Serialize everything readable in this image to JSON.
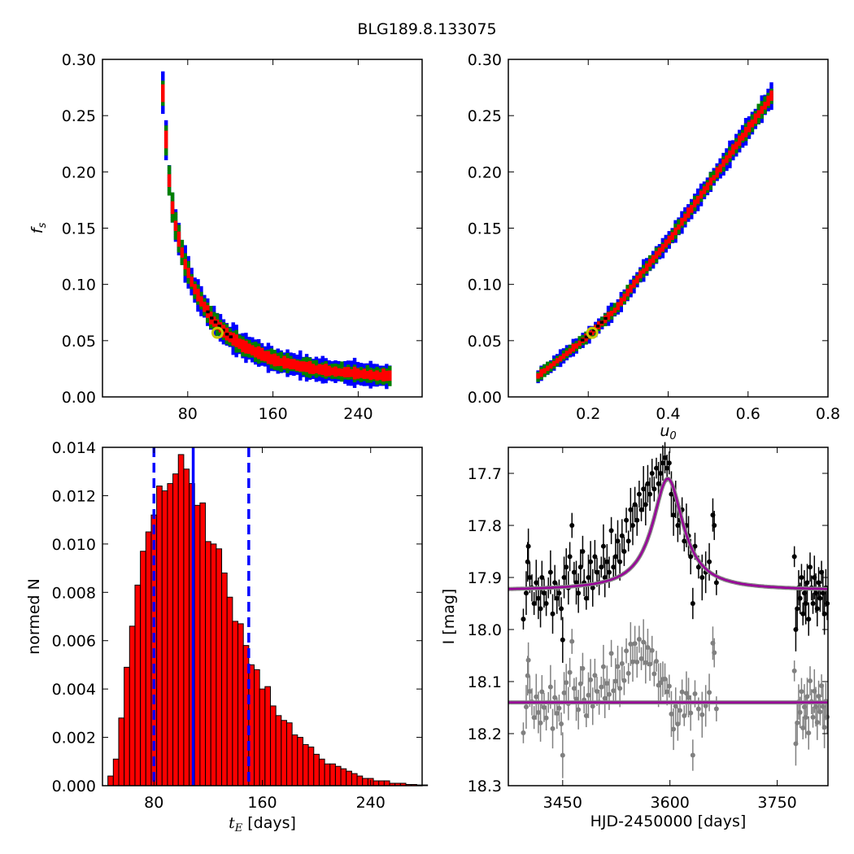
{
  "title": "BLG189.8.133075",
  "chart_data": [
    {
      "panel": "top-left",
      "type": "heatmap",
      "description_levels": [
        "best",
        "1-sigma",
        "2-sigma",
        "3-sigma"
      ],
      "colors": {
        "best": "#000000",
        "1-sigma": "#ff0000",
        "2-sigma": "#008000",
        "3-sigma": "#0000ff",
        "marker": "#c8c800"
      },
      "xlabel": "",
      "ylabel": "f_s",
      "xlim": [
        0,
        300
      ],
      "ylim": [
        0.0,
        0.3
      ],
      "xticks": [
        "80",
        "160",
        "240"
      ],
      "yticks": [
        "0.00",
        "0.05",
        "0.10",
        "0.15",
        "0.20",
        "0.25",
        "0.30"
      ],
      "best_fit": {
        "x": 108,
        "y": 0.057
      },
      "ridge": [
        {
          "x": 55,
          "y": 0.27
        },
        {
          "x": 60,
          "y": 0.2
        },
        {
          "x": 65,
          "y": 0.16
        },
        {
          "x": 75,
          "y": 0.12
        },
        {
          "x": 85,
          "y": 0.095
        },
        {
          "x": 100,
          "y": 0.07
        },
        {
          "x": 115,
          "y": 0.055
        },
        {
          "x": 130,
          "y": 0.045
        },
        {
          "x": 160,
          "y": 0.032
        },
        {
          "x": 200,
          "y": 0.024
        },
        {
          "x": 240,
          "y": 0.02
        },
        {
          "x": 270,
          "y": 0.018
        }
      ]
    },
    {
      "panel": "top-right",
      "type": "heatmap",
      "xlabel": "u_0",
      "ylabel": "",
      "xlim": [
        0.0,
        0.8
      ],
      "ylim": [
        0.0,
        0.3
      ],
      "xticks": [
        "0.2",
        "0.4",
        "0.6",
        "0.8"
      ],
      "yticks": [
        "0.00",
        "0.05",
        "0.10",
        "0.15",
        "0.20",
        "0.25",
        "0.30"
      ],
      "best_fit": {
        "x": 0.21,
        "y": 0.057
      },
      "ridge": [
        {
          "x": 0.07,
          "y": 0.018
        },
        {
          "x": 0.13,
          "y": 0.035
        },
        {
          "x": 0.2,
          "y": 0.055
        },
        {
          "x": 0.27,
          "y": 0.08
        },
        {
          "x": 0.33,
          "y": 0.11
        },
        {
          "x": 0.4,
          "y": 0.14
        },
        {
          "x": 0.46,
          "y": 0.17
        },
        {
          "x": 0.52,
          "y": 0.2
        },
        {
          "x": 0.58,
          "y": 0.23
        },
        {
          "x": 0.63,
          "y": 0.255
        },
        {
          "x": 0.66,
          "y": 0.27
        }
      ]
    },
    {
      "panel": "bottom-left",
      "type": "bar",
      "xlabel": "t_E [days]",
      "ylabel": "normed N",
      "xlim": [
        42,
        278
      ],
      "ylim": [
        0.0,
        0.014
      ],
      "xticks": [
        "80",
        "160",
        "240"
      ],
      "yticks": [
        "0.000",
        "0.002",
        "0.004",
        "0.006",
        "0.008",
        "0.010",
        "0.012",
        "0.014"
      ],
      "bar_color": "#ff0000",
      "bin_width": 4,
      "bins_start": 46,
      "values": [
        0.0004,
        0.0011,
        0.0028,
        0.0049,
        0.0066,
        0.0083,
        0.0097,
        0.0105,
        0.0112,
        0.0124,
        0.0122,
        0.0125,
        0.0129,
        0.0137,
        0.0131,
        0.0125,
        0.0116,
        0.0117,
        0.0101,
        0.01,
        0.0098,
        0.0088,
        0.0078,
        0.0068,
        0.0067,
        0.0058,
        0.005,
        0.0048,
        0.004,
        0.0041,
        0.0033,
        0.0029,
        0.0027,
        0.0026,
        0.0021,
        0.002,
        0.0017,
        0.0016,
        0.0013,
        0.0011,
        0.0009,
        0.0009,
        0.0008,
        0.0007,
        0.0006,
        0.0005,
        0.0004,
        0.0003,
        0.0003,
        0.0002,
        0.0002,
        0.0002,
        0.0001,
        0.0001,
        0.0001,
        5e-05,
        5e-05,
        3e-05,
        3e-05
      ],
      "lines": {
        "median": 109,
        "lower": 80,
        "upper": 150,
        "color": "#0000ff"
      }
    },
    {
      "panel": "bottom-right",
      "type": "scatter",
      "xlabel": "HJD-2450000 [days]",
      "ylabel": "I [mag]",
      "xlim": [
        3374,
        3821
      ],
      "ylim": [
        18.3,
        17.65
      ],
      "xticks": [
        "3450",
        "3600",
        "3750"
      ],
      "yticks": [
        "17.7",
        "17.8",
        "17.9",
        "18.0",
        "18.1",
        "18.2",
        "18.3"
      ],
      "model": {
        "t0": 3597,
        "peak": 17.71,
        "base": 17.925,
        "tau": 45,
        "color": "#990099"
      },
      "residual_baseline": 18.14,
      "data_color": "#000000",
      "residual_color": "#808080",
      "epochs": [
        [
          3395,
          17.98
        ],
        [
          3399,
          17.93
        ],
        [
          3401,
          17.87
        ],
        [
          3402,
          17.84
        ],
        [
          3404,
          17.9
        ],
        [
          3407,
          17.92
        ],
        [
          3410,
          17.95
        ],
        [
          3413,
          17.91
        ],
        [
          3416,
          17.94
        ],
        [
          3419,
          17.96
        ],
        [
          3421,
          17.9
        ],
        [
          3424,
          17.93
        ],
        [
          3427,
          17.95
        ],
        [
          3430,
          17.92
        ],
        [
          3433,
          17.89
        ],
        [
          3436,
          17.97
        ],
        [
          3439,
          17.91
        ],
        [
          3442,
          17.94
        ],
        [
          3445,
          17.93
        ],
        [
          3448,
          17.96
        ],
        [
          3450,
          18.02
        ],
        [
          3452,
          17.9
        ],
        [
          3455,
          17.88
        ],
        [
          3458,
          17.92
        ],
        [
          3460,
          17.86
        ],
        [
          3463,
          17.8
        ],
        [
          3466,
          17.89
        ],
        [
          3469,
          17.91
        ],
        [
          3472,
          17.93
        ],
        [
          3475,
          17.88
        ],
        [
          3478,
          17.85
        ],
        [
          3480,
          17.91
        ],
        [
          3483,
          17.94
        ],
        [
          3486,
          17.9
        ],
        [
          3489,
          17.87
        ],
        [
          3492,
          17.92
        ],
        [
          3495,
          17.86
        ],
        [
          3498,
          17.89
        ],
        [
          3501,
          17.91
        ],
        [
          3504,
          17.88
        ],
        [
          3507,
          17.84
        ],
        [
          3509,
          17.9
        ],
        [
          3512,
          17.87
        ],
        [
          3515,
          17.89
        ],
        [
          3518,
          17.81
        ],
        [
          3521,
          17.88
        ],
        [
          3524,
          17.86
        ],
        [
          3527,
          17.83
        ],
        [
          3530,
          17.87
        ],
        [
          3533,
          17.82
        ],
        [
          3536,
          17.85
        ],
        [
          3539,
          17.79
        ],
        [
          3542,
          17.83
        ],
        [
          3545,
          17.77
        ],
        [
          3548,
          17.8
        ],
        [
          3551,
          17.76
        ],
        [
          3554,
          17.79
        ],
        [
          3557,
          17.74
        ],
        [
          3560,
          17.77
        ],
        [
          3563,
          17.73
        ],
        [
          3566,
          17.76
        ],
        [
          3569,
          17.72
        ],
        [
          3572,
          17.74
        ],
        [
          3575,
          17.7
        ],
        [
          3578,
          17.73
        ],
        [
          3581,
          17.69
        ],
        [
          3584,
          17.72
        ],
        [
          3587,
          17.7
        ],
        [
          3590,
          17.68
        ],
        [
          3593,
          17.67
        ],
        [
          3596,
          17.69
        ],
        [
          3599,
          17.68
        ],
        [
          3602,
          17.74
        ],
        [
          3605,
          17.78
        ],
        [
          3608,
          17.75
        ],
        [
          3611,
          17.8
        ],
        [
          3614,
          17.79
        ],
        [
          3617,
          17.77
        ],
        [
          3620,
          17.83
        ],
        [
          3623,
          17.8
        ],
        [
          3626,
          17.82
        ],
        [
          3629,
          17.86
        ],
        [
          3632,
          17.95
        ],
        [
          3635,
          17.84
        ],
        [
          3640,
          17.88
        ],
        [
          3645,
          17.9
        ],
        [
          3650,
          17.89
        ],
        [
          3655,
          17.87
        ],
        [
          3660,
          17.78
        ],
        [
          3662,
          17.8
        ],
        [
          3665,
          17.91
        ],
        [
          3774,
          17.86
        ],
        [
          3776,
          18.0
        ],
        [
          3778,
          17.96
        ],
        [
          3780,
          17.92
        ],
        [
          3782,
          17.94
        ],
        [
          3784,
          17.9
        ],
        [
          3786,
          17.97
        ],
        [
          3788,
          17.93
        ],
        [
          3790,
          17.95
        ],
        [
          3792,
          17.91
        ],
        [
          3794,
          17.98
        ],
        [
          3796,
          17.88
        ],
        [
          3798,
          17.92
        ],
        [
          3800,
          17.95
        ],
        [
          3802,
          17.9
        ],
        [
          3804,
          17.93
        ],
        [
          3806,
          17.96
        ],
        [
          3808,
          17.91
        ],
        [
          3810,
          17.94
        ],
        [
          3812,
          17.89
        ],
        [
          3814,
          17.93
        ],
        [
          3816,
          17.97
        ],
        [
          3818,
          17.92
        ],
        [
          3820,
          17.95
        ]
      ]
    }
  ]
}
